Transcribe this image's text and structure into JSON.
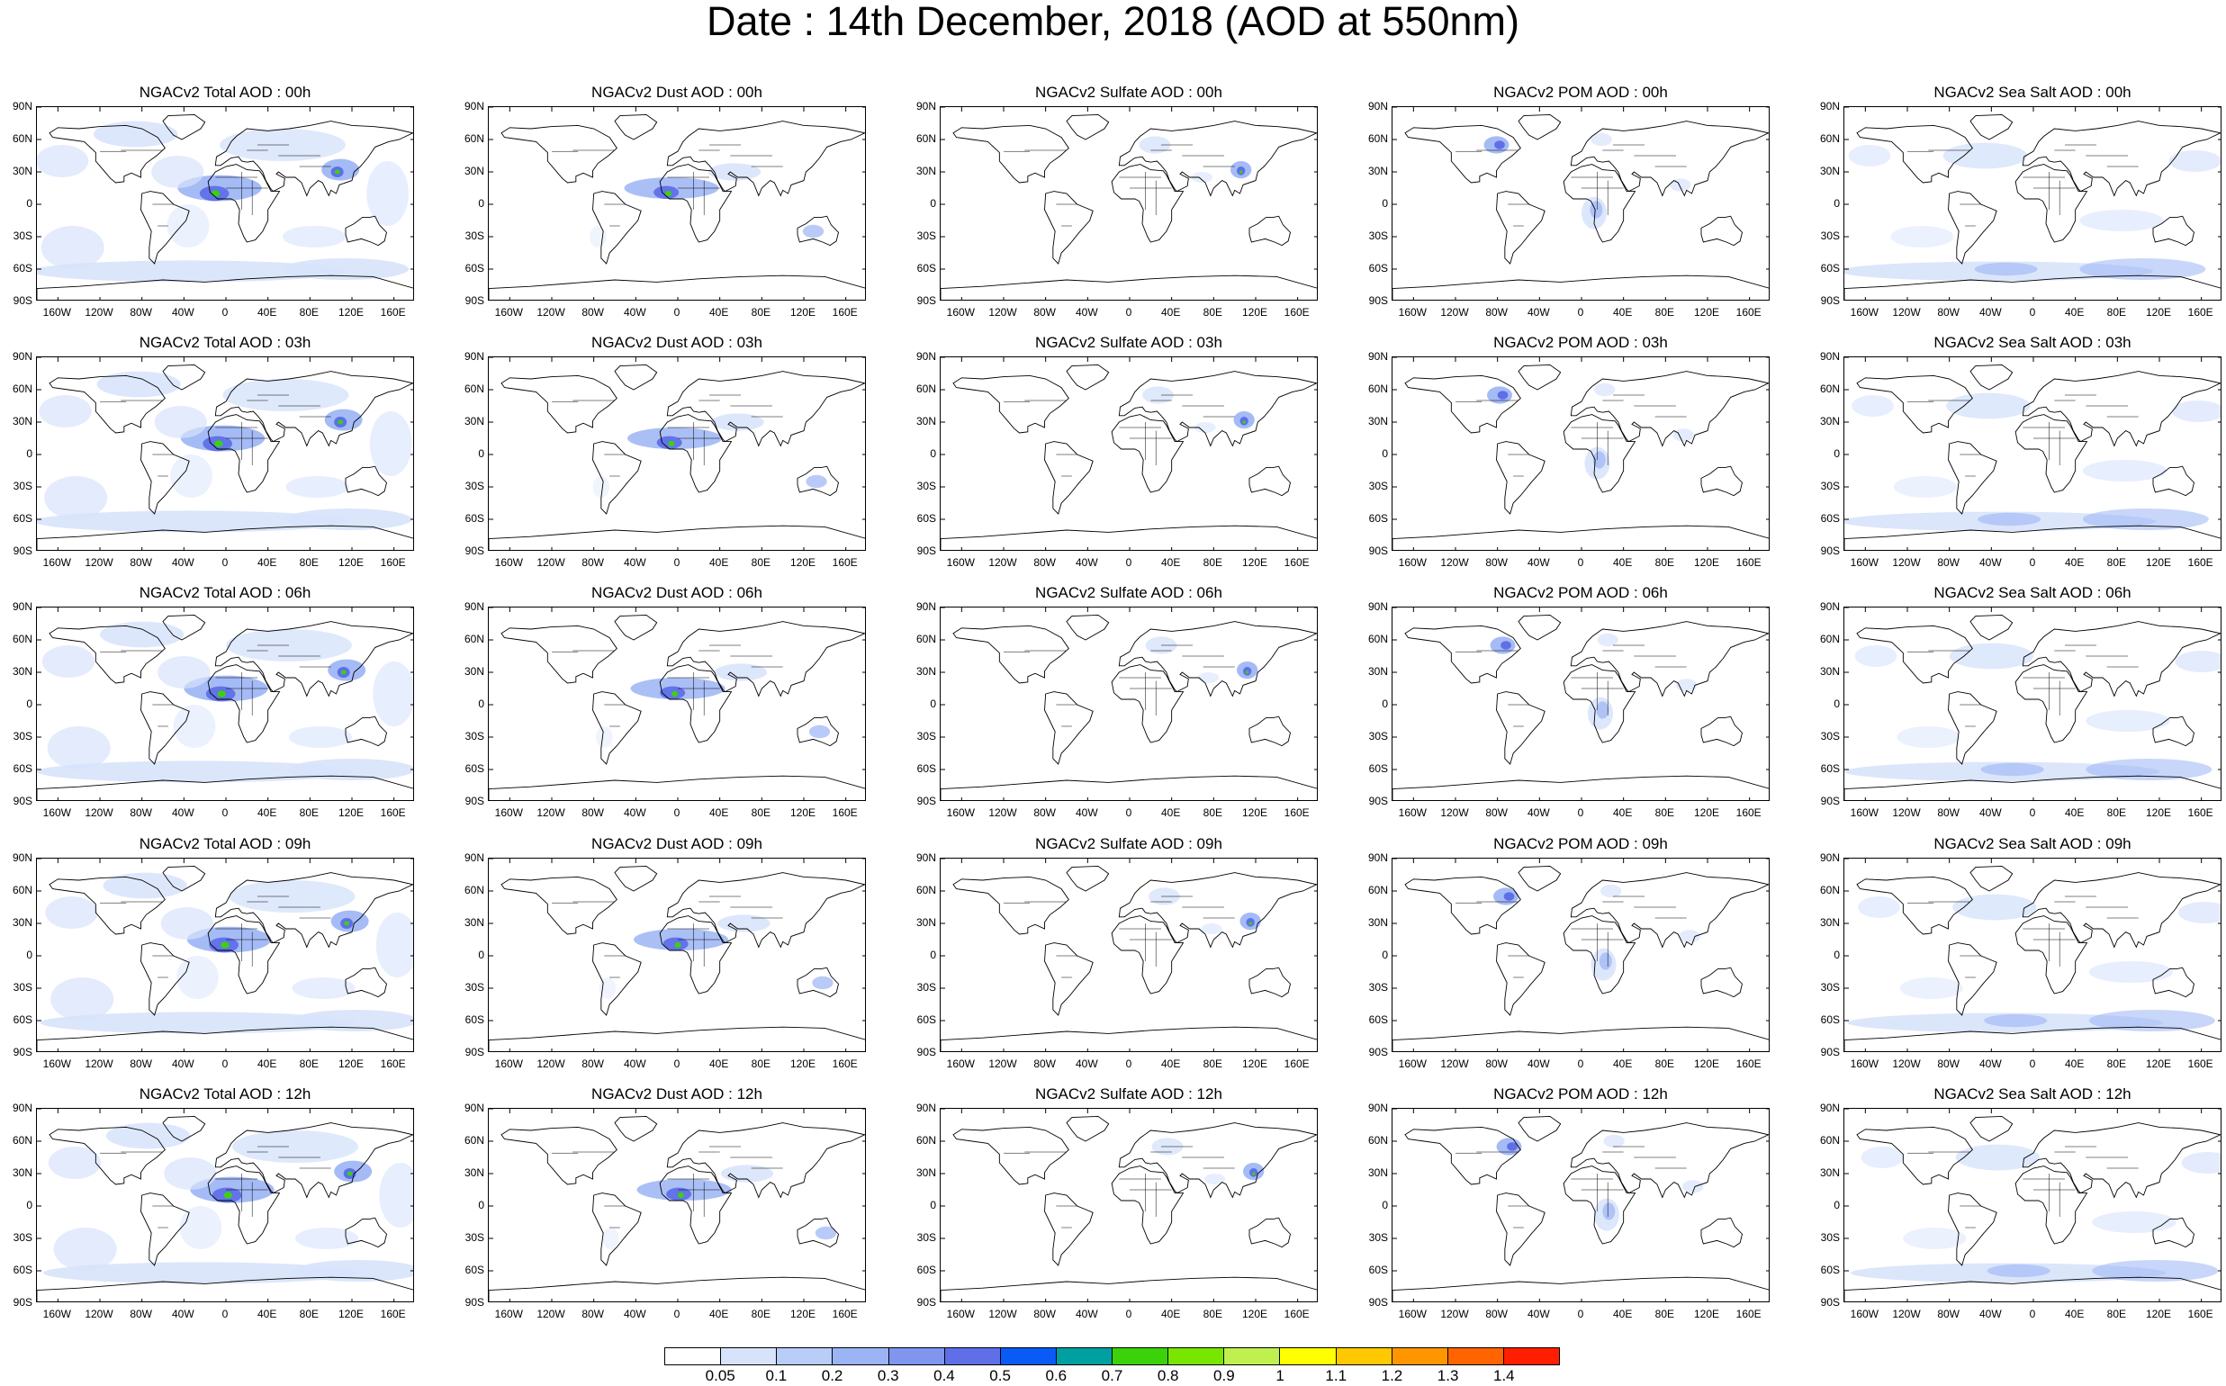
{
  "title": "Date : 14th December, 2018 (AOD at 550nm)",
  "panels": [
    [
      "NGACv2 Total AOD : 00h",
      "NGACv2 Dust AOD : 00h",
      "NGACv2 Sulfate AOD : 00h",
      "NGACv2 POM AOD : 00h",
      "NGACv2 Sea Salt AOD : 00h"
    ],
    [
      "NGACv2 Total AOD : 03h",
      "NGACv2 Dust AOD : 03h",
      "NGACv2 Sulfate AOD : 03h",
      "NGACv2 POM AOD : 03h",
      "NGACv2 Sea Salt AOD : 03h"
    ],
    [
      "NGACv2 Total AOD : 06h",
      "NGACv2 Dust AOD : 06h",
      "NGACv2 Sulfate AOD : 06h",
      "NGACv2 POM AOD : 06h",
      "NGACv2 Sea Salt AOD : 06h"
    ],
    [
      "NGACv2 Total AOD : 09h",
      "NGACv2 Dust AOD : 09h",
      "NGACv2 Sulfate AOD : 09h",
      "NGACv2 POM AOD : 09h",
      "NGACv2 Sea Salt  AOD : 09h"
    ],
    [
      "NGACv2 Total AOD : 12h",
      "NGACv2 Dust AOD : 12h",
      "NGACv2 Sulfate AOD : 12h",
      "NGACv2 POM  AOD : 12h",
      "NGACv2 Sea Salt AOD : 12h"
    ]
  ],
  "y_ticks": [
    "90N",
    "60N",
    "30N",
    "0",
    "30S",
    "60S",
    "90S"
  ],
  "x_ticks": [
    "160W",
    "120W",
    "80W",
    "40W",
    "0",
    "40E",
    "80E",
    "120E",
    "160E"
  ],
  "colorbar": {
    "labels": [
      "0.05",
      "0.1",
      "0.2",
      "0.3",
      "0.4",
      "0.5",
      "0.6",
      "0.7",
      "0.8",
      "0.9",
      "1",
      "1.1",
      "1.2",
      "1.3",
      "1.4"
    ],
    "colors": [
      "#ffffff",
      "#d7e3fb",
      "#b8cdf8",
      "#9bb4f5",
      "#7f95f0",
      "#5f6fe8",
      "#0a5af5",
      "#00a0a0",
      "#3cd20a",
      "#78e600",
      "#c0f050",
      "#ffff00",
      "#ffc800",
      "#ff9600",
      "#ff6400",
      "#ff1e00"
    ]
  },
  "map_colors": {
    "low": "#d7e3fb",
    "mid": "#9bb4f5",
    "high": "#5f6fe8",
    "peak": "#3cd20a",
    "land": "#000000"
  }
}
